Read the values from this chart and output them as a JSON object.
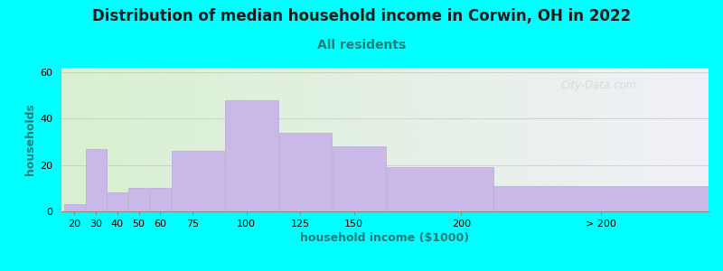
{
  "title": "Distribution of median household income in Corwin, OH in 2022",
  "subtitle": "All residents",
  "xlabel": "household income ($1000)",
  "ylabel": "households",
  "background_color": "#00FFFF",
  "plot_bg_gradient_left": "#d8f0d0",
  "plot_bg_gradient_right": "#f0f0f8",
  "bar_color": "#c9b8e8",
  "bar_edgecolor": "#b8a8d8",
  "bar_heights": [
    3,
    27,
    8,
    10,
    10,
    26,
    48,
    34,
    28,
    19,
    11
  ],
  "bar_widths": [
    10,
    10,
    10,
    10,
    10,
    25,
    25,
    25,
    25,
    50,
    100
  ],
  "bar_lefts": [
    15,
    25,
    35,
    45,
    55,
    65,
    90,
    115,
    140,
    165,
    215
  ],
  "xlim_left": 14,
  "xlim_right": 315,
  "ylim": [
    0,
    62
  ],
  "yticks": [
    0,
    20,
    40,
    60
  ],
  "xtick_positions": [
    20,
    30,
    40,
    50,
    60,
    75,
    100,
    125,
    150,
    200,
    265
  ],
  "xtick_labels": [
    "20",
    "30",
    "40",
    "50",
    "60",
    "75",
    "100",
    "125",
    "150",
    "200",
    "> 200"
  ],
  "title_fontsize": 12,
  "subtitle_fontsize": 10,
  "axis_label_fontsize": 9,
  "title_color": "#1a1a1a",
  "subtitle_color": "#2a7a7a",
  "watermark_text": "City-Data.com",
  "watermark_alpha": 0.22,
  "tick_fontsize": 8
}
